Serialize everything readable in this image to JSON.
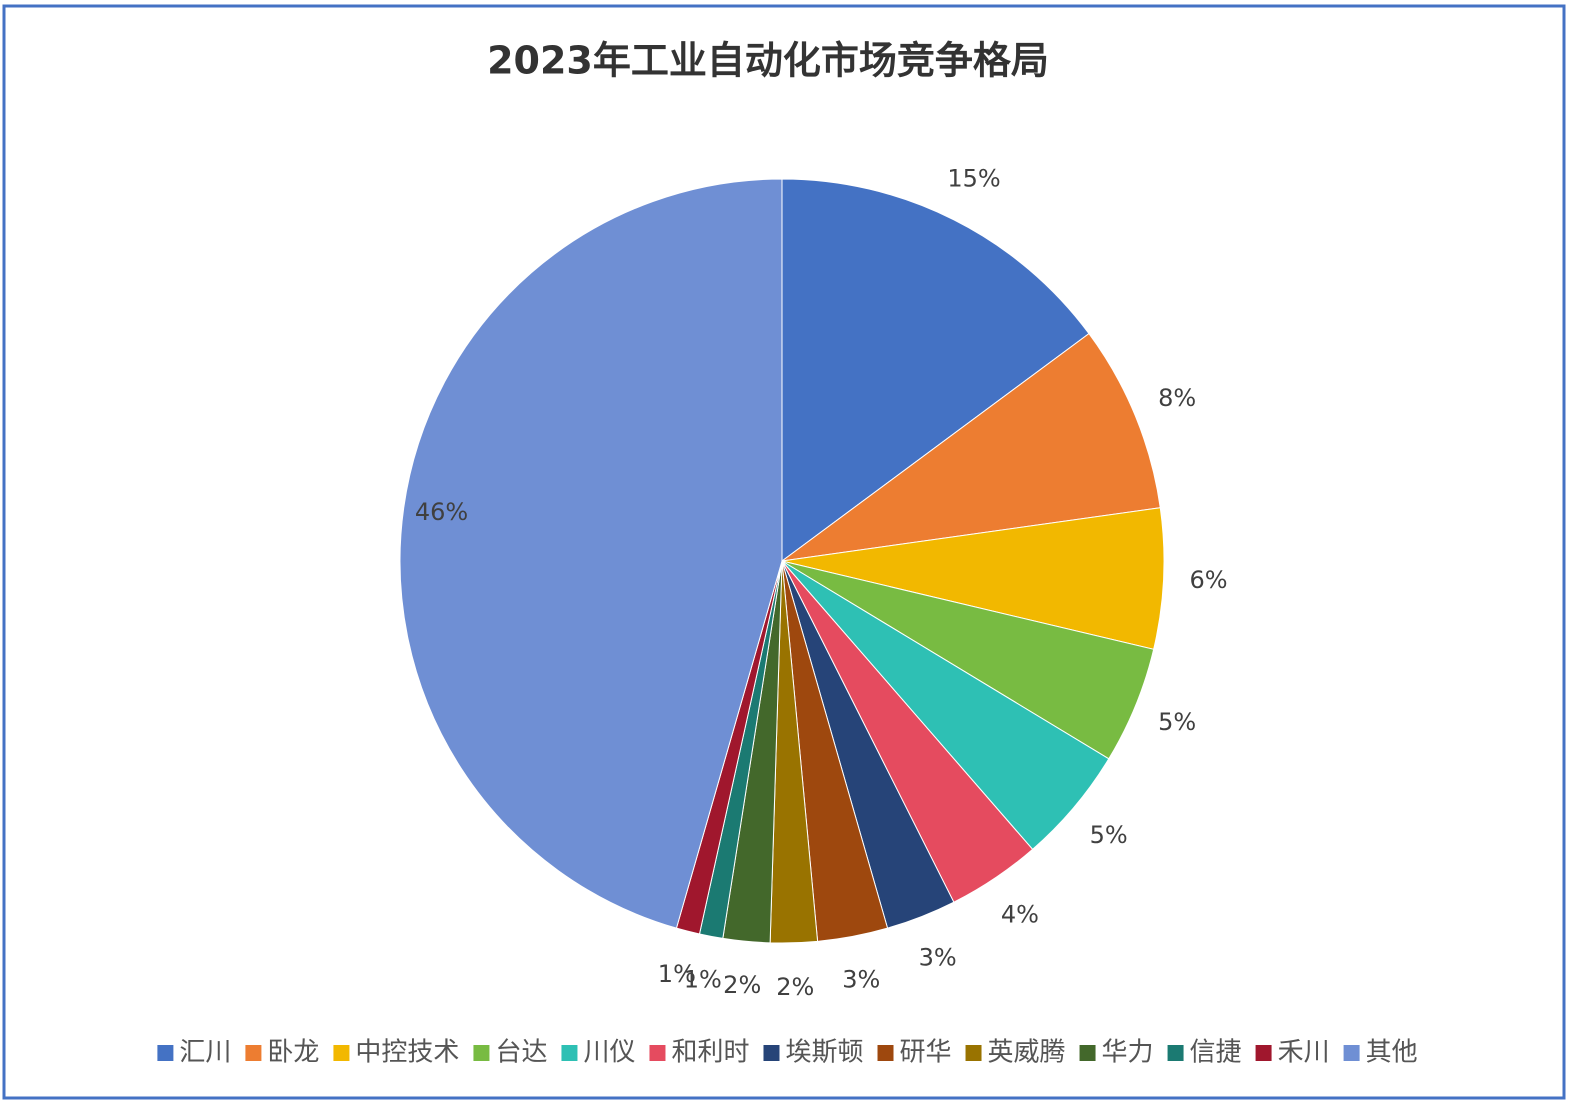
{
  "chart_data": {
    "type": "pie",
    "title": "2023年工业自动化市场竞争格局",
    "categories": [
      "汇川",
      "卧龙",
      "中控技术",
      "台达",
      "川仪",
      "和利时",
      "埃斯顿",
      "研华",
      "英威腾",
      "华力",
      "信捷",
      "禾川",
      "其他"
    ],
    "values": [
      15,
      8,
      6,
      5,
      5,
      4,
      3,
      3,
      2,
      2,
      1,
      1,
      46
    ],
    "value_labels": [
      "15%",
      "8%",
      "6%",
      "5%",
      "5%",
      "4%",
      "3%",
      "3%",
      "2%",
      "2%",
      "1%",
      "1%",
      "46%"
    ],
    "colors": [
      "#4472c4",
      "#ed7d31",
      "#f2b800",
      "#78bb42",
      "#2ec0b4",
      "#e54b5f",
      "#264478",
      "#9e480e",
      "#997300",
      "#43682b",
      "#1b7a72",
      "#a0172d",
      "#6f8fd4"
    ],
    "legend": "bottom"
  }
}
